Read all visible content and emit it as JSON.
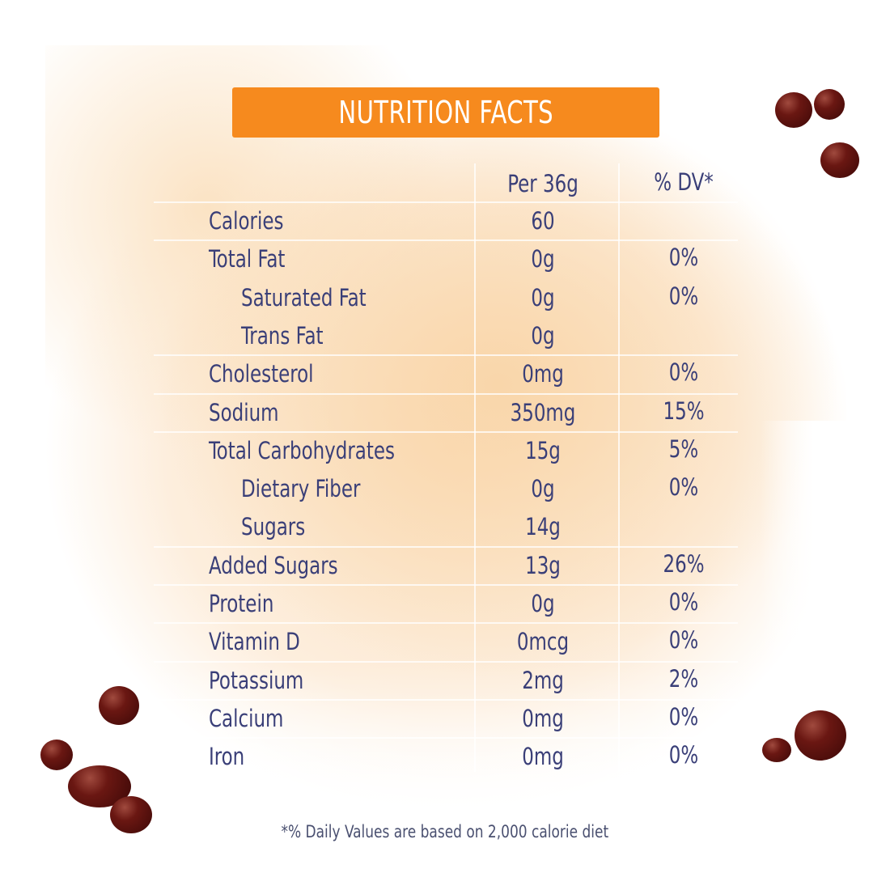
{
  "title": "NUTRITION FACTS",
  "columns": {
    "serving": "Per 36g",
    "dv": "% DV*"
  },
  "rows": [
    {
      "name": "Calories",
      "amount": "60",
      "dv": "",
      "indent": false
    },
    {
      "name": "Total Fat",
      "amount": "0g",
      "dv": "0%",
      "indent": false
    },
    {
      "name": "Saturated Fat",
      "amount": "0g",
      "dv": "0%",
      "indent": true
    },
    {
      "name": "Trans Fat",
      "amount": "0g",
      "dv": "",
      "indent": true
    },
    {
      "name": "Cholesterol",
      "amount": "0mg",
      "dv": "0%",
      "indent": false
    },
    {
      "name": "Sodium",
      "amount": "350mg",
      "dv": "15%",
      "indent": false
    },
    {
      "name": "Total Carbohydrates",
      "amount": "15g",
      "dv": "5%",
      "indent": false
    },
    {
      "name": "Dietary Fiber",
      "amount": "0g",
      "dv": "0%",
      "indent": true
    },
    {
      "name": "Sugars",
      "amount": "14g",
      "dv": "",
      "indent": true
    },
    {
      "name": "Added Sugars",
      "amount": "13g",
      "dv": "26%",
      "indent": false
    },
    {
      "name": "Protein",
      "amount": "0g",
      "dv": "0%",
      "indent": false
    },
    {
      "name": "Vitamin D",
      "amount": "0mcg",
      "dv": "0%",
      "indent": false
    },
    {
      "name": "Potassium",
      "amount": "2mg",
      "dv": "2%",
      "indent": false
    },
    {
      "name": "Calcium",
      "amount": "0mg",
      "dv": "0%",
      "indent": false
    },
    {
      "name": "Iron",
      "amount": "0mg",
      "dv": "0%",
      "indent": false
    }
  ],
  "footnote": "*% Daily Values are based on 2,000 calorie diet",
  "colors": {
    "accent": "#f68a1e",
    "text": "#3a3f78",
    "pearl": "#5a110d"
  }
}
